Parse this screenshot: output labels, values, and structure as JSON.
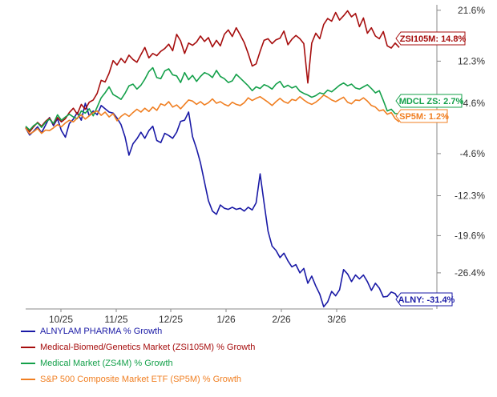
{
  "chart_data": {
    "type": "line",
    "x_tick_labels": [
      "10/25",
      "11/25",
      "12/25",
      "1/26",
      "2/26",
      "3/26"
    ],
    "y_tick_labels": [
      "21.6%",
      "12.3%",
      "4.6%",
      "-4.6%",
      "-12.3%",
      "-19.6%",
      "-26.4%"
    ],
    "y_ticks": [
      21.6,
      12.3,
      4.6,
      -4.6,
      -12.3,
      -19.6,
      -26.4
    ],
    "ylim": [
      -33.0,
      22.6
    ],
    "grid": false,
    "legend_position": "bottom-left",
    "series": [
      {
        "key": "alny",
        "name": "ALNYLAM PHARMA % Growth",
        "end_label": "ALNY: -31.4%",
        "color": "#1a1aa6",
        "values": [
          0.1,
          -1.2,
          -0.5,
          0.3,
          -0.8,
          0.6,
          2.0,
          0.5,
          1.8,
          -0.4,
          -1.6,
          0.9,
          1.7,
          2.9,
          1.5,
          4.6,
          2.3,
          3.2,
          2.5,
          4.2,
          3.6,
          3.0,
          2.8,
          1.9,
          0.7,
          -1.5,
          -4.9,
          -2.8,
          -1.9,
          -0.7,
          -1.8,
          -0.4,
          0.4,
          -2.2,
          -2.6,
          -0.9,
          -1.3,
          -1.8,
          -0.7,
          1.3,
          1.5,
          3.0,
          -1.5,
          -3.7,
          -6.3,
          -9.8,
          -13.2,
          -15.1,
          -15.7,
          -14.0,
          -14.6,
          -14.8,
          -14.4,
          -14.8,
          -14.6,
          -15.1,
          -14.4,
          -14.9,
          -13.6,
          -8.3,
          -13.6,
          -18.8,
          -21.5,
          -22.3,
          -23.6,
          -22.8,
          -24.2,
          -25.3,
          -24.9,
          -26.4,
          -25.6,
          -28.3,
          -27.0,
          -28.8,
          -30.3,
          -32.6,
          -31.7,
          -29.8,
          -30.6,
          -29.5,
          -25.8,
          -26.6,
          -28.0,
          -26.8,
          -27.5,
          -26.8,
          -28.0,
          -29.6,
          -28.3,
          -29.2,
          -30.8,
          -30.7,
          -29.9,
          -30.2,
          -31.4
        ]
      },
      {
        "key": "zsi105m",
        "name": "Medical-Biomed/Genetics Market (ZSI105M) % Growth",
        "end_label": "ZSI105M: 14.8%",
        "color": "#a60d0d",
        "values": [
          0.2,
          -0.6,
          0.3,
          1.1,
          0.4,
          1.3,
          1.9,
          0.8,
          2.0,
          1.2,
          1.8,
          2.9,
          3.7,
          2.6,
          4.4,
          3.5,
          4.8,
          5.2,
          6.4,
          8.8,
          8.5,
          10.1,
          12.4,
          11.6,
          12.8,
          12.0,
          13.4,
          12.6,
          12.1,
          13.5,
          14.8,
          12.9,
          13.7,
          13.3,
          14.1,
          14.6,
          15.4,
          14.2,
          17.2,
          16.0,
          13.7,
          15.6,
          15.2,
          15.8,
          16.9,
          15.9,
          16.6,
          14.9,
          16.1,
          15.1,
          17.2,
          18.0,
          16.8,
          18.4,
          17.1,
          15.7,
          13.7,
          11.4,
          11.8,
          14.1,
          16.1,
          16.4,
          15.5,
          16.2,
          16.5,
          17.8,
          15.3,
          16.3,
          17.0,
          16.4,
          15.5,
          8.3,
          15.6,
          17.4,
          16.4,
          19.0,
          20.1,
          19.6,
          21.2,
          19.8,
          20.6,
          21.5,
          20.4,
          21.0,
          18.6,
          20.2,
          17.4,
          18.4,
          16.9,
          16.4,
          17.7,
          15.1,
          14.7,
          15.6,
          14.8
        ]
      },
      {
        "key": "zs4m",
        "name": "Medical Market (ZS4M) % Growth",
        "end_label": "MDCL ZS: 2.7%",
        "color": "#14a04a",
        "values": [
          0.4,
          -0.3,
          0.5,
          1.0,
          0.2,
          1.1,
          1.7,
          0.9,
          2.5,
          1.5,
          2.1,
          2.6,
          2.1,
          1.8,
          3.2,
          2.8,
          3.6,
          2.3,
          3.9,
          5.6,
          6.5,
          7.6,
          6.2,
          5.8,
          5.3,
          6.4,
          7.8,
          8.1,
          7.2,
          7.9,
          9.0,
          10.4,
          11.1,
          9.3,
          9.1,
          10.5,
          10.9,
          9.8,
          9.6,
          8.4,
          10.2,
          8.9,
          9.7,
          8.6,
          9.5,
          10.2,
          9.9,
          9.3,
          10.6,
          9.5,
          9.1,
          8.4,
          8.7,
          9.9,
          9.2,
          8.5,
          7.8,
          6.9,
          7.6,
          7.3,
          8.0,
          7.7,
          7.2,
          8.1,
          8.6,
          7.5,
          7.9,
          7.4,
          7.7,
          6.8,
          6.4,
          6.1,
          5.7,
          6.0,
          6.5,
          6.3,
          7.0,
          6.7,
          7.3,
          7.9,
          8.3,
          7.8,
          8.1,
          7.4,
          7.2,
          7.6,
          8.0,
          7.3,
          6.5,
          6.9,
          5.1,
          3.2,
          3.5,
          2.7,
          2.7
        ]
      },
      {
        "key": "sp5m",
        "name": "S&P 500 Composite Market ETF (SP5M) % Growth",
        "end_label": "SP5M: 1.2%",
        "color": "#f07f22",
        "values": [
          0.1,
          -1.0,
          -0.6,
          0.0,
          -0.9,
          -0.3,
          -0.4,
          0.1,
          0.7,
          0.3,
          1.0,
          1.5,
          1.2,
          1.9,
          2.5,
          1.7,
          2.3,
          2.9,
          3.2,
          2.4,
          3.0,
          2.1,
          2.7,
          1.4,
          2.2,
          2.7,
          2.2,
          2.9,
          3.5,
          3.0,
          3.7,
          3.1,
          3.9,
          3.3,
          4.5,
          4.2,
          4.9,
          3.9,
          4.3,
          3.6,
          4.4,
          5.2,
          5.0,
          4.4,
          4.9,
          4.3,
          4.7,
          5.4,
          4.6,
          4.9,
          4.4,
          4.1,
          4.8,
          4.4,
          4.2,
          4.7,
          5.6,
          5.1,
          5.5,
          5.8,
          5.3,
          4.8,
          4.2,
          4.9,
          5.5,
          4.9,
          4.6,
          5.3,
          5.1,
          5.8,
          5.2,
          4.7,
          4.4,
          4.8,
          5.4,
          6.1,
          5.7,
          5.2,
          4.9,
          5.3,
          5.7,
          4.8,
          4.5,
          5.2,
          5.1,
          5.6,
          5.0,
          4.2,
          3.9,
          3.2,
          3.4,
          2.6,
          2.9,
          1.8,
          1.2
        ]
      }
    ]
  }
}
